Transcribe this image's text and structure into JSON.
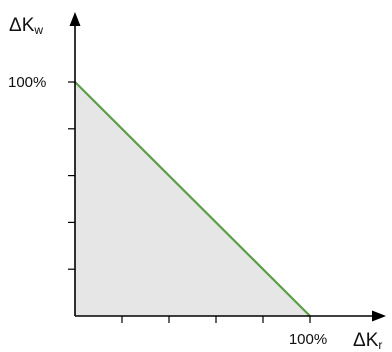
{
  "chart_data": {
    "type": "area",
    "x": [
      0,
      100
    ],
    "y": [
      100,
      0
    ],
    "xlim": [
      0,
      100
    ],
    "ylim": [
      0,
      100
    ],
    "x_tick_count": 5,
    "y_tick_count": 5,
    "x_tick_labels": [
      "100%"
    ],
    "y_tick_labels": [
      "100%"
    ],
    "xlabel": {
      "symbol": "ΔK",
      "sub": "r"
    },
    "ylabel": {
      "symbol": "ΔK",
      "sub": "w"
    },
    "grid": false,
    "line_color": "#5a9e45",
    "fill_color": "#e6e6e6",
    "axis_color": "#000000"
  }
}
